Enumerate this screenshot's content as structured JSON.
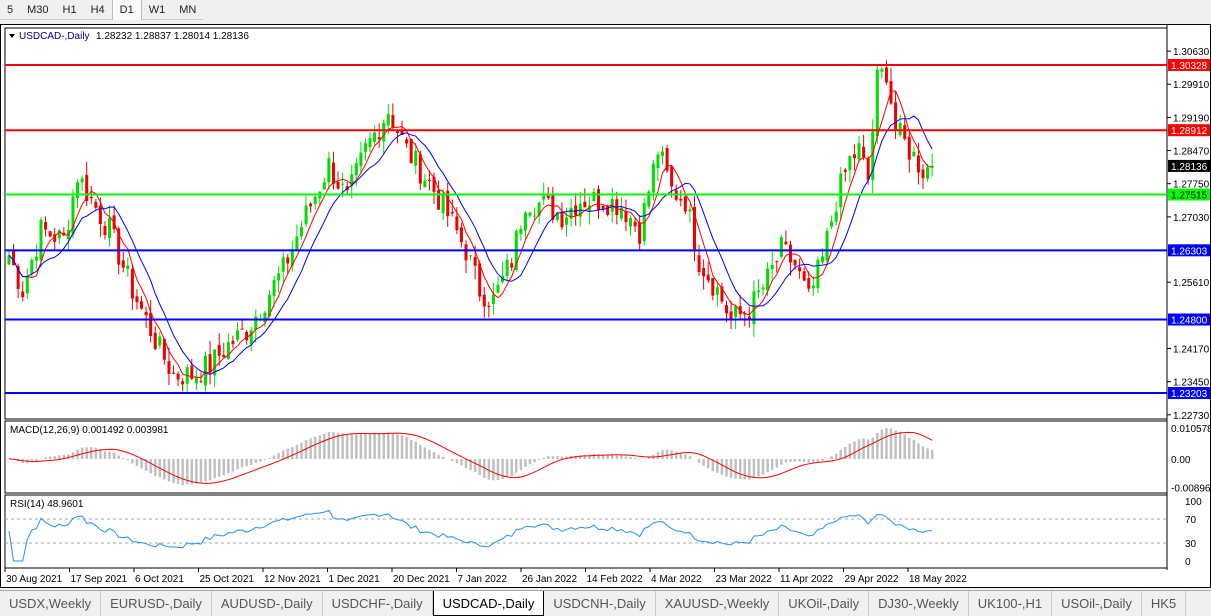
{
  "timeframes": [
    "5",
    "M30",
    "H1",
    "H4",
    "D1",
    "W1",
    "MN"
  ],
  "selected_timeframe": "D1",
  "chart_header": {
    "symbol": "USDCAD-,Daily",
    "ohlc": "1.28232 1.28837 1.28014 1.28136"
  },
  "price_axis": [
    "1.30630",
    "1.29910",
    "1.29190",
    "1.28470",
    "1.27750",
    "1.27030",
    "1.25610",
    "1.24170",
    "1.23450",
    "1.22730"
  ],
  "levels": [
    {
      "price": 1.30328,
      "label": "1.30328",
      "color": "#ff0000"
    },
    {
      "price": 1.28912,
      "label": "1.28912",
      "color": "#ff0000"
    },
    {
      "price": 1.27515,
      "label": "1.27515",
      "color": "#00ff00"
    },
    {
      "price": 1.26303,
      "label": "1.26303",
      "color": "#0000ff"
    },
    {
      "price": 1.248,
      "label": "1.24800",
      "color": "#0000ff"
    },
    {
      "price": 1.23203,
      "label": "1.23203",
      "color": "#0000ff"
    }
  ],
  "current_price": "1.28136",
  "colors": {
    "bull": "#00dd00",
    "bear": "#ee0000",
    "ma_fast": "#ff0000",
    "ma_slow": "#0000ff",
    "macd_hist": "#c0c0c0",
    "macd_signal": "#ff0000",
    "rsi": "#1e90ff"
  },
  "chart_data": {
    "type": "candlestick",
    "anchors": [
      [
        0,
        1.262
      ],
      [
        3,
        1.2544
      ],
      [
        7,
        1.2674
      ],
      [
        12,
        1.2653
      ],
      [
        15,
        1.2794
      ],
      [
        18,
        1.274
      ],
      [
        22,
        1.2674
      ],
      [
        27,
        1.2544
      ],
      [
        30,
        1.2479
      ],
      [
        33,
        1.2414
      ],
      [
        36,
        1.236
      ],
      [
        40,
        1.236
      ],
      [
        44,
        1.2381
      ],
      [
        48,
        1.2425
      ],
      [
        52,
        1.2457
      ],
      [
        56,
        1.2522
      ],
      [
        60,
        1.2588
      ],
      [
        64,
        1.2685
      ],
      [
        70,
        1.2816
      ],
      [
        74,
        1.274
      ],
      [
        78,
        1.2848
      ],
      [
        83,
        1.2935
      ],
      [
        87,
        1.2848
      ],
      [
        90,
        1.2805
      ],
      [
        93,
        1.2761
      ],
      [
        96,
        1.2707
      ],
      [
        100,
        1.2631
      ],
      [
        103,
        1.2544
      ],
      [
        106,
        1.2522
      ],
      [
        110,
        1.2609
      ],
      [
        113,
        1.274
      ],
      [
        117,
        1.2729
      ],
      [
        121,
        1.2707
      ],
      [
        125,
        1.274
      ],
      [
        130,
        1.274
      ],
      [
        134,
        1.2729
      ],
      [
        138,
        1.2674
      ],
      [
        142,
        1.2848
      ],
      [
        145,
        1.2761
      ],
      [
        148,
        1.274
      ],
      [
        151,
        1.2609
      ],
      [
        155,
        1.2544
      ],
      [
        158,
        1.2479
      ],
      [
        162,
        1.2501
      ],
      [
        166,
        1.2566
      ],
      [
        169,
        1.2631
      ],
      [
        172,
        1.2598
      ],
      [
        175,
        1.2522
      ],
      [
        178,
        1.2609
      ],
      [
        181,
        1.274
      ],
      [
        184,
        1.2826
      ],
      [
        186,
        1.2848
      ],
      [
        188,
        1.2783
      ],
      [
        190,
        1.3
      ],
      [
        192,
        1.3022
      ],
      [
        194,
        1.2892
      ],
      [
        197,
        1.2848
      ],
      [
        200,
        1.2805
      ],
      [
        202,
        1.28136
      ]
    ],
    "ma_periods": [
      5,
      10
    ]
  },
  "macd": {
    "title": "MACD(12,26,9) 0.001492 0.003981",
    "axis": [
      "0.010578",
      "0.00",
      "-0.00896"
    ]
  },
  "rsi": {
    "title": "RSI(14) 48.9601",
    "axis": [
      "100",
      "70",
      "30",
      "0"
    ]
  },
  "date_axis": [
    "30 Aug 2021",
    "17 Sep 2021",
    "6 Oct 2021",
    "25 Oct 2021",
    "12 Nov 2021",
    "1 Dec 2021",
    "20 Dec 2021",
    "7 Jan 2022",
    "26 Jan 2022",
    "14 Feb 2022",
    "4 Mar 2022",
    "23 Mar 2022",
    "11 Apr 2022",
    "29 Apr 2022",
    "18 May 2022"
  ],
  "tabs": [
    "USDX,Weekly",
    "EURUSD-,Daily",
    "AUDUSD-,Daily",
    "USDCHF-,Daily",
    "USDCAD-,Daily",
    "USDCNH-,Daily",
    "XAUUSD-,Weekly",
    "UKOil-,Daily",
    "DJ30-,Weekly",
    "UK100-,H1",
    "USOil-,Daily",
    "HK5"
  ],
  "active_tab": "USDCAD-,Daily"
}
